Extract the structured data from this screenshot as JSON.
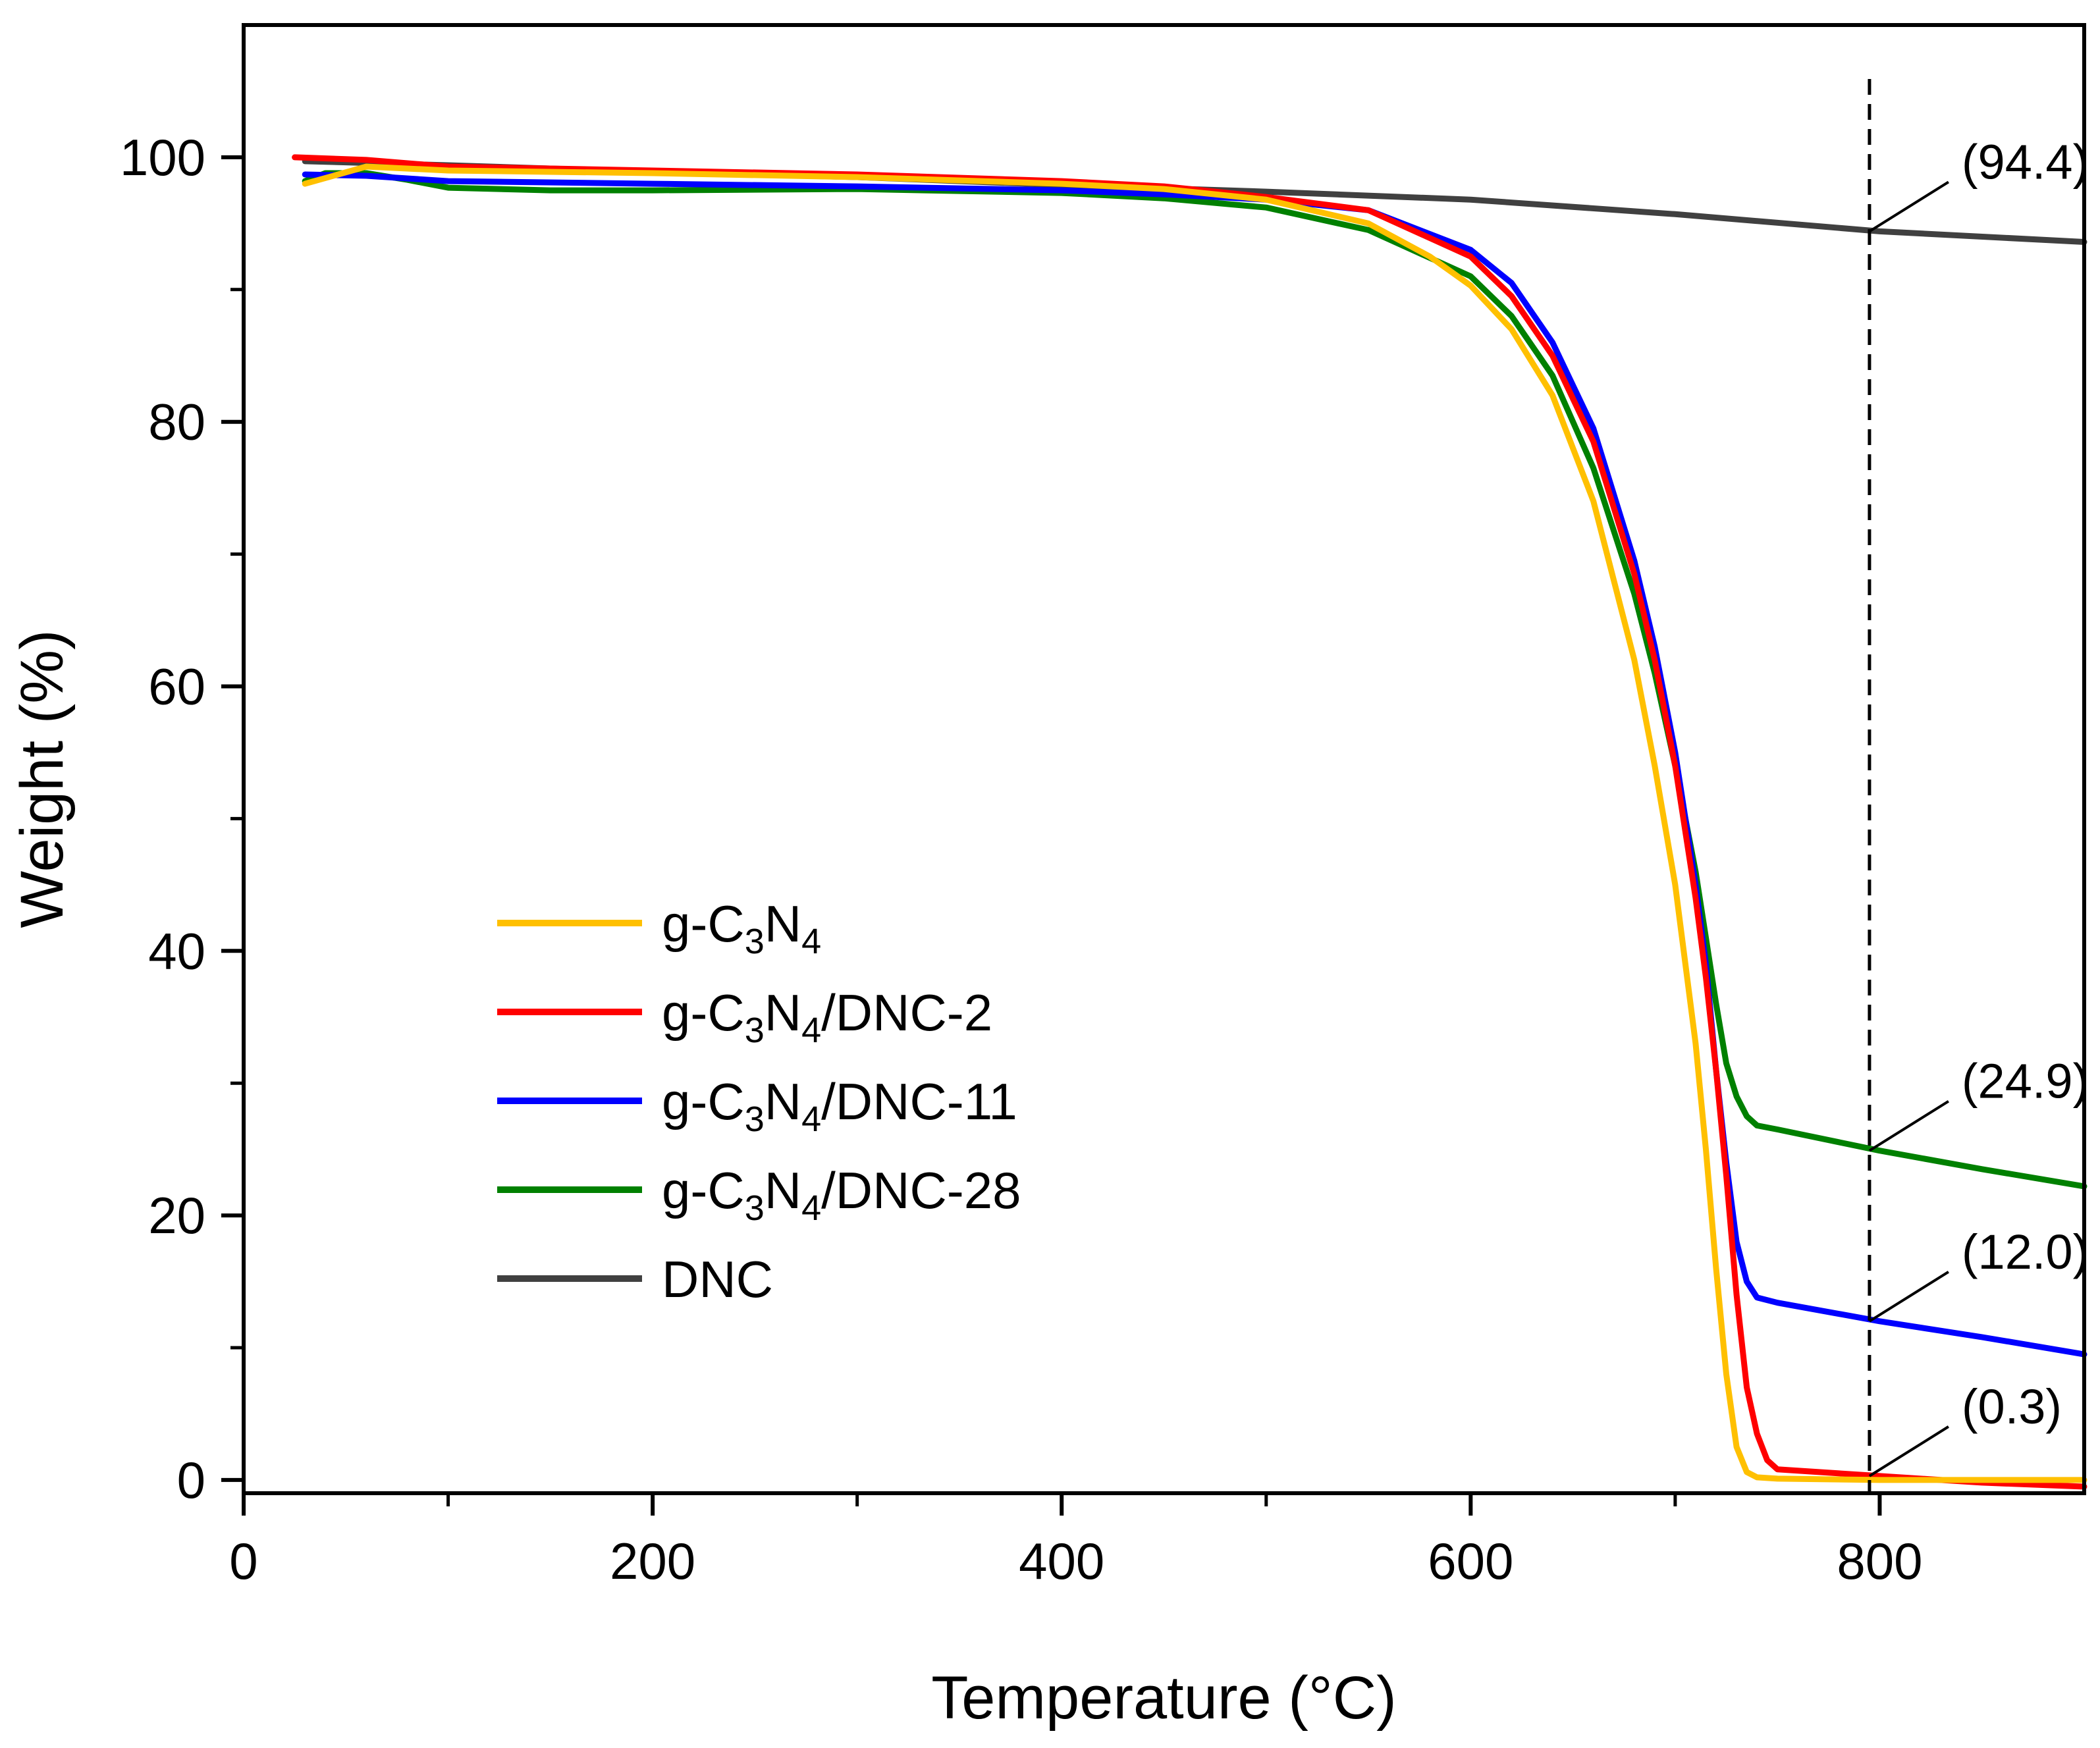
{
  "chart_data": {
    "type": "line",
    "xlabel": "Temperature (°C)",
    "ylabel": "Weight (%)",
    "xlim": [
      0,
      900
    ],
    "ylim": [
      -1,
      110
    ],
    "x_ticks": [
      0,
      200,
      400,
      600,
      800
    ],
    "y_ticks": [
      0,
      20,
      40,
      60,
      80,
      100
    ],
    "x_minor_ticks": [
      100,
      300,
      500,
      700
    ],
    "y_minor_ticks": [
      10,
      30,
      50,
      70,
      90
    ],
    "grid": false,
    "legend_position": "lower-left",
    "series": [
      {
        "name": "g-C3N4",
        "label_base": "g-C",
        "sub1": "3",
        "label_mid": "N",
        "sub2": "4",
        "label_suffix": "",
        "color": "#FFC000",
        "x": [
          30,
          60,
          100,
          200,
          300,
          400,
          450,
          500,
          550,
          580,
          600,
          620,
          640,
          660,
          680,
          690,
          700,
          710,
          715,
          720,
          725,
          730,
          735,
          740,
          750,
          800,
          850,
          900
        ],
        "y": [
          98.0,
          99.3,
          99.0,
          98.8,
          98.5,
          98.0,
          97.6,
          96.8,
          95.0,
          92.5,
          90.3,
          87.0,
          82.0,
          74.0,
          62.0,
          54.0,
          45.0,
          33.0,
          25.0,
          16.0,
          8.0,
          2.5,
          0.6,
          0.2,
          0.1,
          0.0,
          0.0,
          0.0
        ]
      },
      {
        "name": "g-C3N4/DNC-2",
        "label_base": "g-C",
        "sub1": "3",
        "label_mid": "N",
        "sub2": "4",
        "label_suffix": "/DNC-2",
        "color": "#FF0000",
        "x": [
          25,
          60,
          100,
          200,
          300,
          400,
          450,
          500,
          550,
          600,
          620,
          640,
          660,
          680,
          690,
          700,
          710,
          715,
          720,
          725,
          730,
          735,
          740,
          745,
          750,
          800,
          850,
          900
        ],
        "y": [
          100.0,
          99.8,
          99.3,
          99.0,
          98.7,
          98.2,
          97.8,
          97.0,
          96.0,
          92.5,
          89.5,
          85.0,
          78.5,
          68.5,
          62.0,
          54.0,
          44.0,
          38.0,
          31.0,
          23.0,
          14.0,
          7.0,
          3.5,
          1.5,
          0.8,
          0.3,
          -0.2,
          -0.5
        ]
      },
      {
        "name": "g-C3N4/DNC-11",
        "label_base": "g-C",
        "sub1": "3",
        "label_mid": "N",
        "sub2": "4",
        "label_suffix": "/DNC-11",
        "color": "#0000FF",
        "x": [
          30,
          60,
          100,
          200,
          300,
          400,
          450,
          500,
          550,
          600,
          620,
          640,
          660,
          680,
          690,
          700,
          710,
          715,
          720,
          725,
          730,
          735,
          740,
          750,
          800,
          850,
          900
        ],
        "y": [
          98.7,
          98.6,
          98.2,
          98.0,
          97.8,
          97.5,
          97.2,
          96.8,
          96.0,
          93.0,
          90.5,
          86.0,
          79.5,
          69.5,
          63.0,
          55.0,
          45.0,
          39.0,
          31.0,
          24.0,
          18.0,
          15.0,
          13.8,
          13.4,
          12.0,
          10.8,
          9.5
        ]
      },
      {
        "name": "g-C3N4/DNC-28",
        "label_base": "g-C",
        "sub1": "3",
        "label_mid": "N",
        "sub2": "4",
        "label_suffix": "/DNC-28",
        "color": "#008000",
        "x": [
          30,
          40,
          60,
          80,
          100,
          150,
          200,
          300,
          400,
          450,
          500,
          550,
          600,
          620,
          640,
          660,
          680,
          690,
          700,
          710,
          715,
          720,
          725,
          730,
          735,
          740,
          750,
          800,
          850,
          900
        ],
        "y": [
          98.2,
          98.8,
          98.8,
          98.3,
          97.7,
          97.5,
          97.5,
          97.6,
          97.3,
          96.9,
          96.2,
          94.5,
          91.0,
          88.0,
          83.5,
          76.5,
          67.0,
          61.0,
          54.0,
          46.0,
          41.0,
          36.0,
          31.5,
          29.0,
          27.5,
          26.8,
          26.5,
          24.9,
          23.5,
          22.2
        ]
      },
      {
        "name": "DNC",
        "label_base": "DNC",
        "sub1": "",
        "label_mid": "",
        "sub2": "",
        "label_suffix": "",
        "color": "#404040",
        "x": [
          30,
          100,
          200,
          300,
          400,
          500,
          600,
          700,
          800,
          900
        ],
        "y": [
          99.7,
          99.4,
          98.9,
          98.5,
          97.9,
          97.4,
          96.8,
          95.7,
          94.4,
          93.6
        ]
      }
    ],
    "reference_line": {
      "x": 795,
      "style": "dashed"
    },
    "annotations": [
      {
        "text": "(94.4)",
        "value": 94.4,
        "series": "DNC"
      },
      {
        "text": "(24.9)",
        "value": 24.9,
        "series": "g-C3N4/DNC-28"
      },
      {
        "text": "(12.0)",
        "value": 12.0,
        "series": "g-C3N4/DNC-11"
      },
      {
        "text": "(0.3)",
        "value": 0.3,
        "series": "g-C3N4/DNC-2"
      }
    ]
  }
}
